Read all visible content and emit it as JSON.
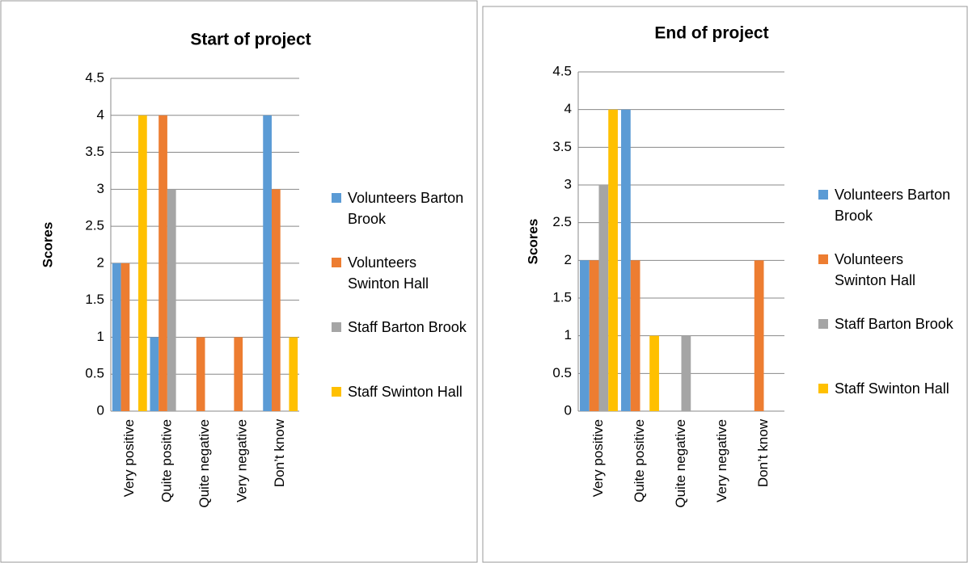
{
  "chart_data": [
    {
      "type": "bar",
      "title": "Start of project",
      "y_label": "Scores",
      "categories": [
        "Very positive",
        "Quite positive",
        "Quite negative",
        "Very negative",
        "Don’t know"
      ],
      "series": [
        {
          "name": "Volunteers Barton Brook",
          "color": "#5b9bd5",
          "values": [
            2,
            1,
            0,
            0,
            4
          ]
        },
        {
          "name": "Volunteers Swinton Hall",
          "color": "#ed7d31",
          "values": [
            2,
            4,
            1,
            1,
            3
          ]
        },
        {
          "name": "Staff Barton Brook",
          "color": "#a5a5a5",
          "values": [
            0,
            3,
            0,
            0,
            0
          ]
        },
        {
          "name": "Staff Swinton Hall",
          "color": "#ffc000",
          "values": [
            4,
            0,
            0,
            0,
            1
          ]
        }
      ],
      "ylim": [
        0,
        4.5
      ],
      "yticks": [
        0,
        0.5,
        1,
        1.5,
        2,
        2.5,
        3,
        3.5,
        4,
        4.5
      ],
      "grid": true,
      "legend": "right"
    },
    {
      "type": "bar",
      "title": "End of project",
      "y_label": "Scores",
      "categories": [
        "Very positive",
        "Quite positive",
        "Quite negative",
        "Very negative",
        "Don’t know"
      ],
      "series": [
        {
          "name": "Volunteers Barton Brook",
          "color": "#5b9bd5",
          "values": [
            2,
            4,
            0,
            0,
            0
          ]
        },
        {
          "name": "Volunteers Swinton Hall",
          "color": "#ed7d31",
          "values": [
            2,
            2,
            0,
            0,
            2
          ]
        },
        {
          "name": "Staff Barton Brook",
          "color": "#a5a5a5",
          "values": [
            3,
            0,
            1,
            0,
            0
          ]
        },
        {
          "name": "Staff Swinton Hall",
          "color": "#ffc000",
          "values": [
            4,
            1,
            0,
            0,
            0
          ]
        }
      ],
      "ylim": [
        0,
        4.5
      ],
      "yticks": [
        0,
        0.5,
        1,
        1.5,
        2,
        2.5,
        3,
        3.5,
        4,
        4.5
      ],
      "grid": true,
      "legend": "right"
    }
  ]
}
